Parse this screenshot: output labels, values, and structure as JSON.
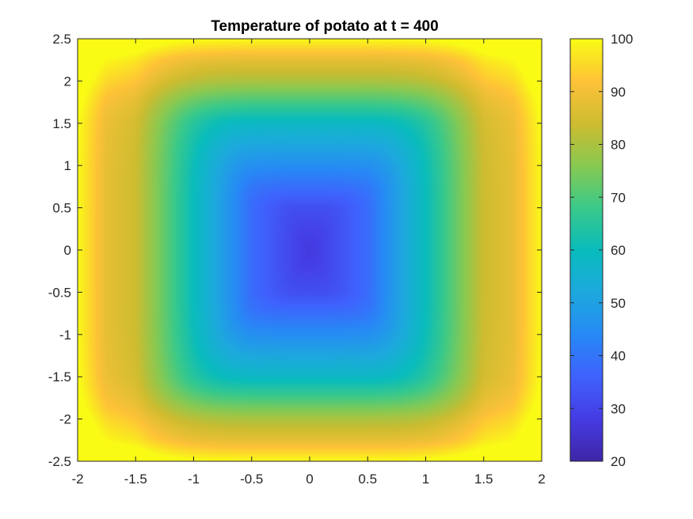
{
  "chart_data": {
    "type": "heatmap",
    "title": "Temperature of potato at t = 400",
    "xlabel": "",
    "ylabel": "",
    "xlim": [
      -2,
      2
    ],
    "ylim": [
      -2.5,
      2.5
    ],
    "x_ticks": [
      -2,
      -1.5,
      -1,
      -0.5,
      0,
      0.5,
      1,
      1.5,
      2
    ],
    "y_ticks": [
      -2.5,
      -2,
      -1.5,
      -1,
      -0.5,
      0,
      0.5,
      1,
      1.5,
      2,
      2.5
    ],
    "x_tick_labels": [
      "-2",
      "-1.5",
      "-1",
      "-0.5",
      "0",
      "0.5",
      "1",
      "1.5",
      "2"
    ],
    "y_tick_labels": [
      "-2.5",
      "-2",
      "-1.5",
      "-1",
      "-0.5",
      "0",
      "0.5",
      "1",
      "1.5",
      "2",
      "2.5"
    ],
    "colorbar": {
      "range": [
        20,
        100
      ],
      "ticks": [
        20,
        30,
        40,
        50,
        60,
        70,
        80,
        90,
        100
      ],
      "tick_labels": [
        "20",
        "30",
        "40",
        "50",
        "60",
        "70",
        "80",
        "90",
        "100"
      ],
      "colormap": "parula"
    },
    "field": {
      "boundary_value": 100,
      "center_value": 27,
      "x_profile": [
        {
          "x": 0.0,
          "value": 27
        },
        {
          "x": 0.5,
          "value": 38
        },
        {
          "x": 1.0,
          "value": 60
        },
        {
          "x": 1.5,
          "value": 84
        },
        {
          "x": 1.75,
          "value": 88
        },
        {
          "x": 2.0,
          "value": 100
        }
      ],
      "y_profile": [
        {
          "y": 0.0,
          "value": 27
        },
        {
          "y": 0.5,
          "value": 32
        },
        {
          "y": 1.0,
          "value": 45
        },
        {
          "y": 1.5,
          "value": 58
        },
        {
          "y": 2.0,
          "value": 80
        },
        {
          "y": 2.25,
          "value": 88
        },
        {
          "y": 2.5,
          "value": 100
        }
      ]
    },
    "grid": false,
    "legend": "colorbar-right"
  }
}
